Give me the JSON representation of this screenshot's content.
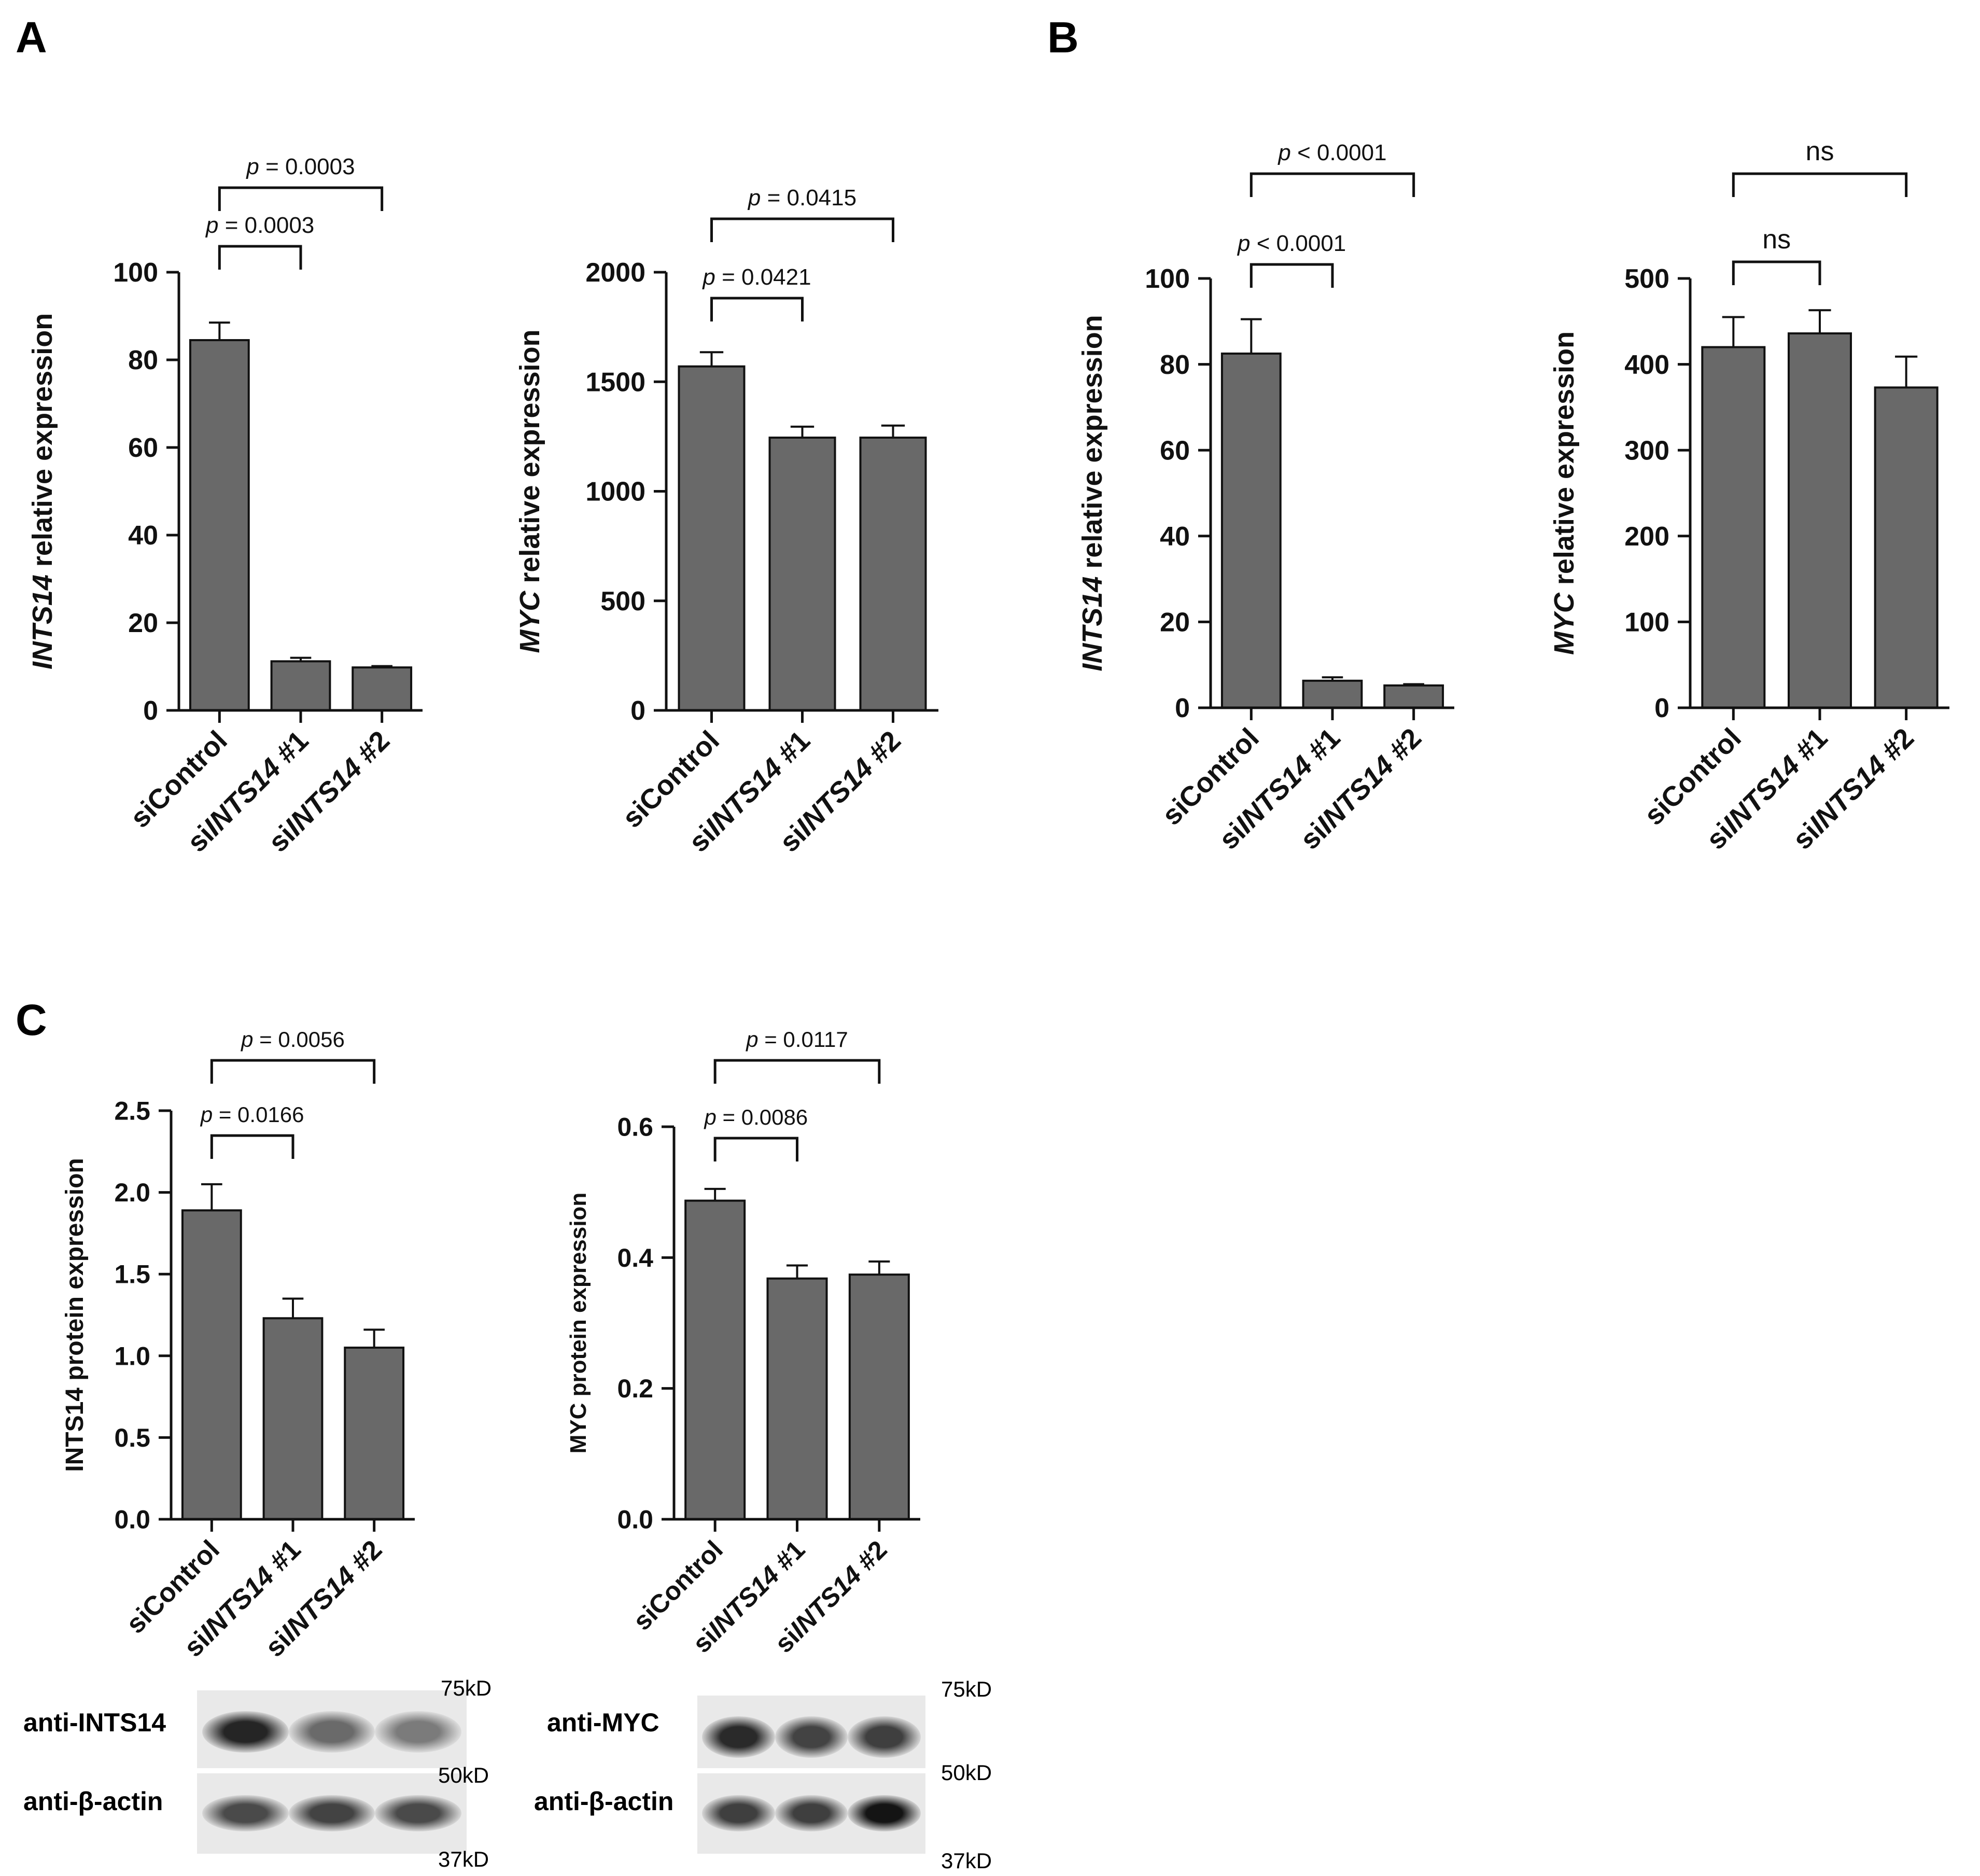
{
  "panels": [
    {
      "letter": "A"
    },
    {
      "letter": "B"
    },
    {
      "letter": "C"
    }
  ],
  "chart_data": [
    {
      "type": "bar",
      "panel": "A",
      "categories": [
        "siControl",
        "siINTS14 #1",
        "siINTS14 #2"
      ],
      "category_parts": [
        [
          "siControl"
        ],
        [
          "si",
          "INTS14",
          " #1"
        ],
        [
          "si",
          "INTS14",
          " #2"
        ]
      ],
      "values": [
        84.5,
        11.2,
        9.8
      ],
      "errors": [
        4.0,
        0.8,
        0.3
      ],
      "ylabel": "INTS14 relative expression",
      "ylabel_parts": [
        {
          "text": "INTS14",
          "italic": true
        },
        {
          "text": " relative expression",
          "italic": false
        }
      ],
      "ylim": [
        0,
        100
      ],
      "yticks": [
        "0",
        "20",
        "40",
        "60",
        "80",
        "100"
      ],
      "comparisons": [
        {
          "from": 0,
          "to": 1,
          "label": "p = 0.0003"
        },
        {
          "from": 0,
          "to": 2,
          "label": "p = 0.0003"
        }
      ],
      "bar_color": "#696969"
    },
    {
      "type": "bar",
      "panel": "A",
      "categories": [
        "siControl",
        "siINTS14 #1",
        "siINTS14 #2"
      ],
      "category_parts": [
        [
          "siControl"
        ],
        [
          "si",
          "INTS14",
          " #1"
        ],
        [
          "si",
          "INTS14",
          " #2"
        ]
      ],
      "values": [
        1570,
        1245,
        1245
      ],
      "errors": [
        65,
        50,
        55
      ],
      "ylabel": "MYC relative expression",
      "ylabel_parts": [
        {
          "text": "MYC",
          "italic": true
        },
        {
          "text": " relative expression",
          "italic": false
        }
      ],
      "ylim": [
        0,
        2000
      ],
      "yticks": [
        "0",
        "500",
        "1000",
        "1500",
        "2000"
      ],
      "comparisons": [
        {
          "from": 0,
          "to": 1,
          "label": "p = 0.0421"
        },
        {
          "from": 0,
          "to": 2,
          "label": "p = 0.0415"
        }
      ],
      "bar_color": "#696969"
    },
    {
      "type": "bar",
      "panel": "B",
      "categories": [
        "siControl",
        "siINTS14 #1",
        "siINTS14 #2"
      ],
      "category_parts": [
        [
          "siControl"
        ],
        [
          "si",
          "INTS14",
          " #1"
        ],
        [
          "si",
          "INTS14",
          " #2"
        ]
      ],
      "values": [
        82.5,
        6.3,
        5.2
      ],
      "errors": [
        8.0,
        0.8,
        0.3
      ],
      "ylabel": "INTS14 relative expression",
      "ylabel_parts": [
        {
          "text": "INTS14",
          "italic": true
        },
        {
          "text": " relative expression",
          "italic": false
        }
      ],
      "ylim": [
        0,
        100
      ],
      "yticks": [
        "0",
        "20",
        "40",
        "60",
        "80",
        "100"
      ],
      "comparisons": [
        {
          "from": 0,
          "to": 1,
          "label": "p < 0.0001"
        },
        {
          "from": 0,
          "to": 2,
          "label": "p < 0.0001"
        }
      ],
      "bar_color": "#696969"
    },
    {
      "type": "bar",
      "panel": "B",
      "categories": [
        "siControl",
        "siINTS14 #1",
        "siINTS14 #2"
      ],
      "category_parts": [
        [
          "siControl"
        ],
        [
          "si",
          "INTS14",
          " #1"
        ],
        [
          "si",
          "INTS14",
          " #2"
        ]
      ],
      "values": [
        420,
        436,
        373
      ],
      "errors": [
        35,
        27,
        36
      ],
      "ylabel": "MYC relative expression",
      "ylabel_parts": [
        {
          "text": "MYC",
          "italic": true
        },
        {
          "text": " relative expression",
          "italic": false
        }
      ],
      "ylim": [
        0,
        500
      ],
      "yticks": [
        "0",
        "100",
        "200",
        "300",
        "400",
        "500"
      ],
      "comparisons": [
        {
          "from": 0,
          "to": 1,
          "label": "ns"
        },
        {
          "from": 0,
          "to": 2,
          "label": "ns"
        }
      ],
      "bar_color": "#696969"
    },
    {
      "type": "bar",
      "panel": "C",
      "categories": [
        "siControl",
        "siINTS14 #1",
        "siINTS14 #2"
      ],
      "category_parts": [
        [
          "siControl"
        ],
        [
          "si",
          "INTS14",
          " #1"
        ],
        [
          "si",
          "INTS14",
          " #2"
        ]
      ],
      "values": [
        1.89,
        1.23,
        1.05
      ],
      "errors": [
        0.16,
        0.12,
        0.11
      ],
      "ylabel": "INTS14 protein expression",
      "ylabel_parts": [
        {
          "text": "INTS14 protein expression",
          "italic": false
        }
      ],
      "ylim": [
        0,
        2.5
      ],
      "yticks": [
        "0.0",
        "0.5",
        "1.0",
        "1.5",
        "2.0",
        "2.5"
      ],
      "comparisons": [
        {
          "from": 0,
          "to": 1,
          "label": "p = 0.0166"
        },
        {
          "from": 0,
          "to": 2,
          "label": "p = 0.0056"
        }
      ],
      "bar_color": "#696969"
    },
    {
      "type": "bar",
      "panel": "C",
      "categories": [
        "siControl",
        "siINTS14 #1",
        "siINTS14 #2"
      ],
      "category_parts": [
        [
          "siControl"
        ],
        [
          "si",
          "INTS14",
          " #1"
        ],
        [
          "si",
          "INTS14",
          " #2"
        ]
      ],
      "values": [
        0.487,
        0.368,
        0.374
      ],
      "errors": [
        0.018,
        0.02,
        0.02
      ],
      "ylabel": "MYC protein expression",
      "ylabel_parts": [
        {
          "text": "MYC protein expression",
          "italic": false
        }
      ],
      "ylim": [
        0,
        0.6
      ],
      "yticks": [
        "0.0",
        "0.2",
        "0.4",
        "0.6"
      ],
      "comparisons": [
        {
          "from": 0,
          "to": 1,
          "label": "p = 0.0086"
        },
        {
          "from": 0,
          "to": 2,
          "label": "p = 0.0117"
        }
      ],
      "bar_color": "#696969"
    }
  ],
  "blots": [
    {
      "target_label": "anti-INTS14",
      "loading_label": "anti-β-actin",
      "mw_top": "75kD",
      "mw_mid": "50kD",
      "mw_bottom": "37kD",
      "target_band_intensity": [
        0.92,
        0.6,
        0.52
      ],
      "loading_band_intensity": [
        0.75,
        0.78,
        0.75
      ]
    },
    {
      "target_label": "anti-MYC",
      "loading_label": "anti-β-actin",
      "mw_top": "75kD",
      "mw_mid": "50kD",
      "mw_bottom": "37kD",
      "target_band_intensity": [
        0.9,
        0.78,
        0.8
      ],
      "loading_band_intensity": [
        0.8,
        0.8,
        1.0
      ]
    }
  ]
}
